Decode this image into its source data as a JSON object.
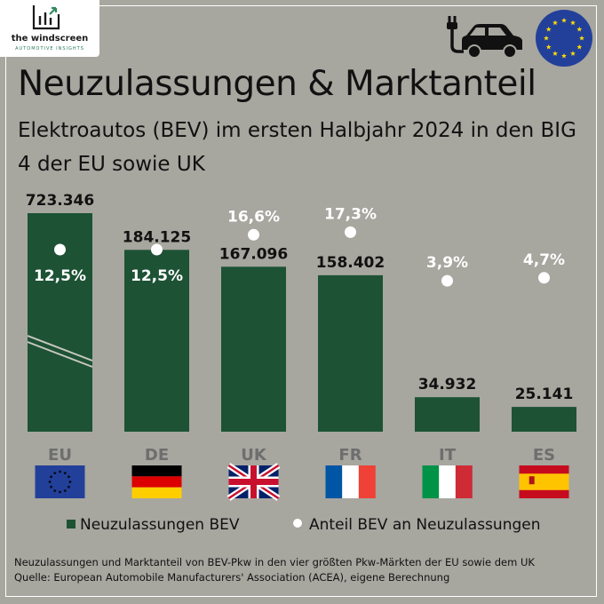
{
  "brand": {
    "name": "the windscreen",
    "tagline": "AUTOMOTIVE INSIGHTS"
  },
  "header": {
    "title": "Neuzulassungen & Marktanteil",
    "subtitle": "Elektroautos (BEV) im ersten Halbjahr 2024 in den BIG 4 der EU sowie UK"
  },
  "icons": [
    "ev-car-icon",
    "eu-flag-icon"
  ],
  "colors": {
    "background": "#a7a69f",
    "bar": "#1d5235",
    "marker": "#ffffff",
    "frame": "#ffffff"
  },
  "chart_data": {
    "type": "bar",
    "categories": [
      "EU",
      "DE",
      "UK",
      "FR",
      "IT",
      "ES"
    ],
    "series": [
      {
        "name": "Neuzulassungen BEV",
        "values": [
          723346,
          184125,
          167096,
          158402,
          34932,
          25141
        ],
        "labels": [
          "723.346",
          "184.125",
          "167.096",
          "158.402",
          "34.932",
          "25.141"
        ]
      },
      {
        "name": "Anteil BEV an Neuzulassungen",
        "values": [
          12.5,
          12.5,
          16.6,
          17.3,
          3.9,
          4.7
        ],
        "labels": [
          "12,5%",
          "12,5%",
          "16,6%",
          "17,3%",
          "3,9%",
          "4,7%"
        ]
      }
    ],
    "bar_axis_break": "EU",
    "share_ylim": [
      0,
      20
    ],
    "flags": [
      "eu",
      "de",
      "uk",
      "fr",
      "it",
      "es"
    ],
    "legend_position": "bottom"
  },
  "footer": {
    "note": "Neuzulassungen und Marktanteil von BEV-Pkw in den vier größten Pkw-Märkten der EU sowie dem UK",
    "source": "Quelle: European Automobile Manufacturers' Association (ACEA), eigene Berechnung"
  }
}
